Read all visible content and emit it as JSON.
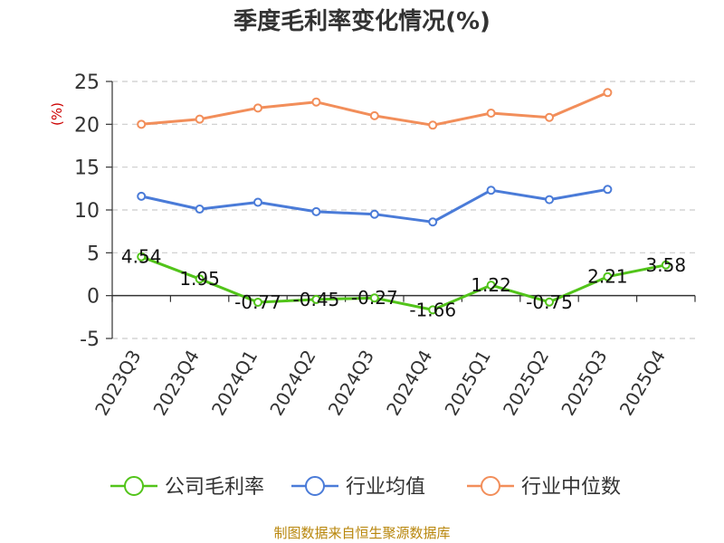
{
  "chart_data": {
    "type": "line",
    "title": "季度毛利率变化情况(%)",
    "ylabel": "(%)",
    "categories": [
      "2023Q3",
      "2023Q4",
      "2024Q1",
      "2024Q2",
      "2024Q3",
      "2024Q4",
      "2025Q1",
      "2025Q2",
      "2025Q3",
      "2025Q4"
    ],
    "ylim": [
      -5,
      25
    ],
    "yticks": [
      -5,
      0,
      5,
      10,
      15,
      20,
      25
    ],
    "grid": true,
    "legend_position": "bottom",
    "series": [
      {
        "name": "公司毛利率",
        "color": "#52c41a",
        "labels_shown": true,
        "values": [
          4.54,
          1.95,
          -0.77,
          -0.45,
          -0.27,
          -1.66,
          1.22,
          -0.75,
          2.21,
          3.58
        ],
        "label_texts": [
          "4.54",
          "1.95",
          "-0.77",
          "-0.45",
          "-0.27",
          "-1.66",
          "1.22",
          "-0.75",
          "2.21",
          "3.58"
        ]
      },
      {
        "name": "行业均值",
        "color": "#4a7bd8",
        "labels_shown": false,
        "values": [
          11.6,
          10.1,
          10.9,
          9.8,
          9.5,
          8.6,
          12.3,
          11.2,
          12.4,
          null
        ]
      },
      {
        "name": "行业中位数",
        "color": "#f28e5a",
        "labels_shown": false,
        "values": [
          20.0,
          20.6,
          21.9,
          22.6,
          21.0,
          19.9,
          21.3,
          20.8,
          23.7,
          null
        ]
      }
    ]
  },
  "footer": {
    "source": "制图数据来自恒生聚源数据库"
  }
}
